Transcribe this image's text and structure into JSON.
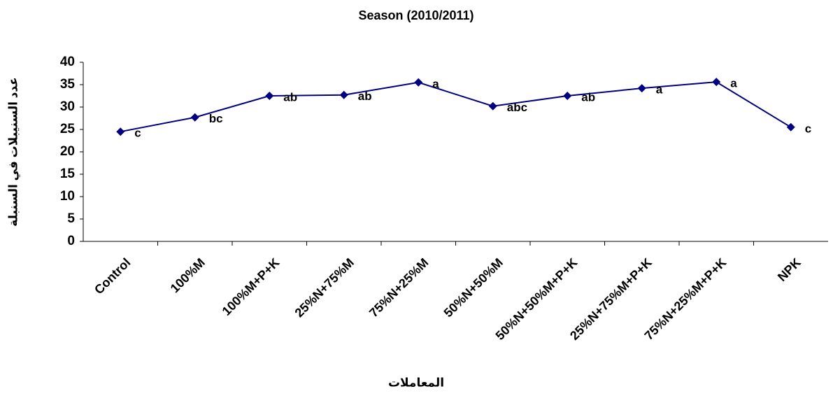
{
  "chart_data": {
    "type": "line",
    "title": "Season (2010/2011)",
    "x_label": "المعاملات",
    "y_label": "عدد السنيبلات في السنبلة",
    "categories": [
      "Control",
      "100%M",
      "100%M+P+K",
      "25%N+75%M",
      "75%N+25%M",
      "50%N+50%M",
      "50%N+50%M+P+K",
      "25%N+75%M+P+K",
      "75%N+25%M+P+K",
      "NPK"
    ],
    "series": [
      {
        "color": "#000080",
        "values": [
          24.5,
          27.7,
          32.5,
          32.7,
          35.5,
          30.2,
          32.5,
          34.2,
          35.6,
          25.5
        ],
        "point_labels": [
          "c",
          "bc",
          "ab",
          "ab",
          "a",
          "abc",
          "ab",
          "a",
          "a",
          "c"
        ]
      }
    ],
    "ylim": [
      0,
      40
    ],
    "yticks": [
      0,
      5,
      10,
      15,
      20,
      25,
      30,
      35,
      40
    ]
  }
}
